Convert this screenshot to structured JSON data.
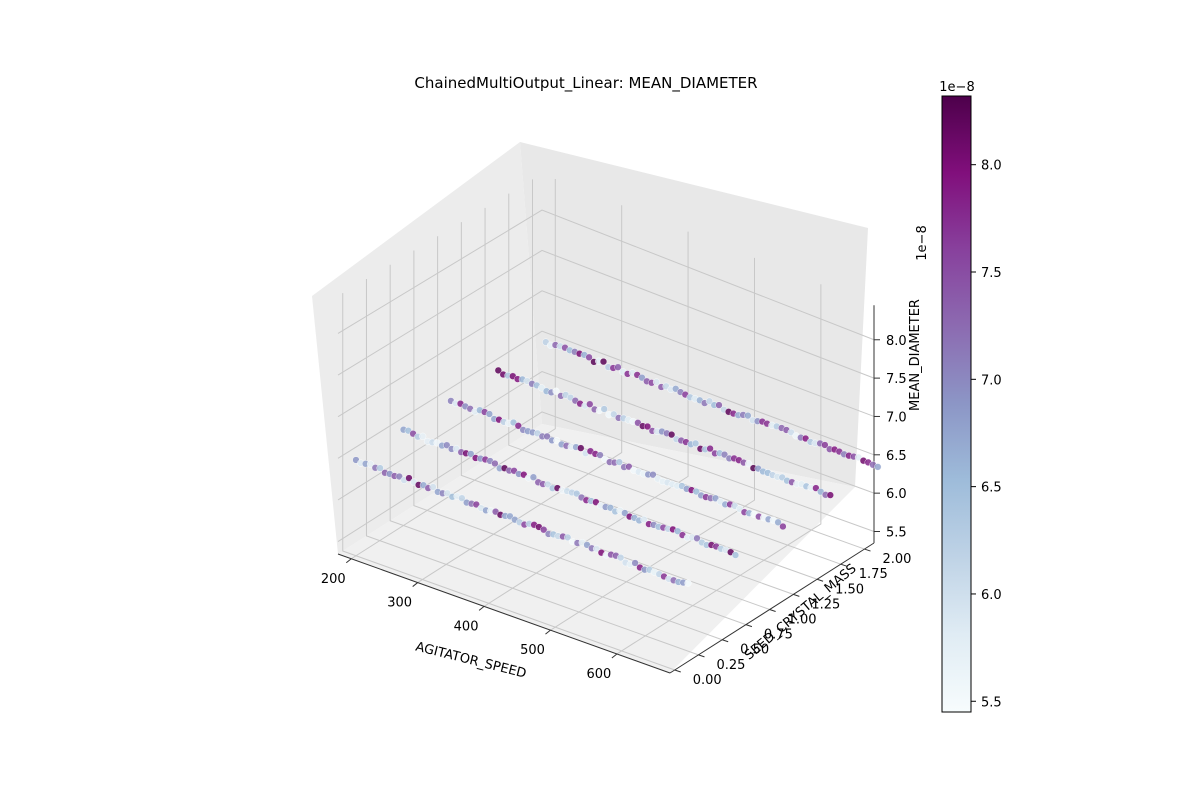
{
  "chart_data": {
    "type": "scatter",
    "projection": "3d",
    "title": "ChainedMultiOutput_Linear: MEAN_DIAMETER",
    "xlabel": "AGITATOR_SPEED",
    "ylabel": "SEED_CRYSTAL_MASS",
    "zlabel": "MEAN_DIAMETER",
    "z_offset_label": "1e−8",
    "xlim": [
      180,
      680
    ],
    "ylim": [
      -0.05,
      2.1
    ],
    "zlim": [
      5.35,
      8.45
    ],
    "z_scale": 1e-08,
    "x_ticks": [
      "200",
      "300",
      "400",
      "500",
      "600"
    ],
    "y_ticks": [
      "0.00",
      "0.25",
      "0.50",
      "0.75",
      "1.00",
      "1.25",
      "1.50",
      "1.75",
      "2.00"
    ],
    "z_ticks": [
      "5.5",
      "6.0",
      "6.5",
      "7.0",
      "7.5",
      "8.0"
    ],
    "grid": true,
    "colorbar": {
      "label_offset": "1e−8",
      "range": [
        5.45,
        8.32
      ],
      "ticks": [
        "5.5",
        "6.0",
        "6.5",
        "7.0",
        "7.5",
        "8.0"
      ],
      "colormap": "BuPu",
      "stops": [
        "#f7fcfd",
        "#e0ecf4",
        "#bfd3e6",
        "#9ebcda",
        "#8c96c6",
        "#8c6bb1",
        "#88419d",
        "#810f7c",
        "#4d004b"
      ]
    },
    "points": {
      "description": "points lie in a thin band at MEAN_DIAMETER ~6.5e-8; color encodes predicted MEAN_DIAMETER",
      "x_range": [
        200,
        700
      ],
      "y_values": [
        0.0,
        0.5,
        1.0,
        1.5,
        2.0
      ],
      "z_center": 6.5
    }
  }
}
